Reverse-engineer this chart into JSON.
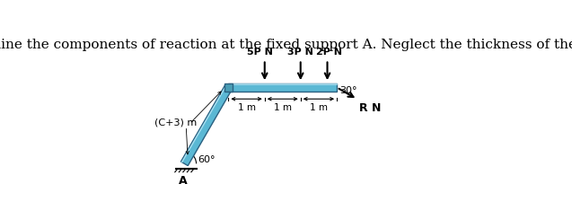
{
  "title": "Determine the components of reaction at the fixed support A. Neglect the thickness of the beam.",
  "title_fontsize": 11,
  "title_color": "#000000",
  "beam_color": "#5bb8d4",
  "beam_edge_color": "#2a6080",
  "beam_thickness": 0.12,
  "diagonal_beam_color": "#5bb8d4",
  "background_color": "#ffffff",
  "label_5PN": "5P N",
  "label_3PN": "3P N",
  "label_2PN": "2P N",
  "label_RN": "R N",
  "label_angle_30": "30°",
  "label_angle_60": "60°",
  "label_length": "(C+3) m",
  "label_1m_1": "1 m",
  "label_1m_2": "1 m",
  "label_1m_3": "1 m",
  "arrow_color": "#000000",
  "dim_color": "#000000",
  "hatch_color": "#555555"
}
